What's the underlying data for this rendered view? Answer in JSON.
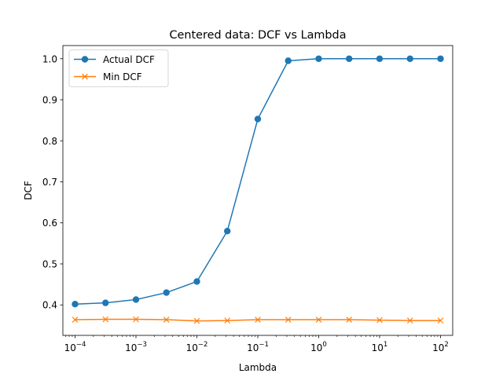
{
  "chart_data": {
    "type": "line",
    "title": "Centered data: DCF vs Lambda",
    "xlabel": "Lambda",
    "ylabel": "DCF",
    "xscale": "log",
    "xlim": [
      6.31e-05,
      158.5
    ],
    "ylim": [
      0.3258,
      1.0321
    ],
    "x": [
      0.0001,
      0.000316,
      0.001,
      0.00316,
      0.01,
      0.0316,
      0.1,
      0.316,
      1,
      3.16,
      10,
      31.6,
      100
    ],
    "x_ticks": [
      {
        "value": 0.0001,
        "base": "10",
        "exp": "−4"
      },
      {
        "value": 0.001,
        "base": "10",
        "exp": "−3"
      },
      {
        "value": 0.01,
        "base": "10",
        "exp": "−2"
      },
      {
        "value": 0.1,
        "base": "10",
        "exp": "−1"
      },
      {
        "value": 1,
        "base": "10",
        "exp": "0"
      },
      {
        "value": 10,
        "base": "10",
        "exp": "1"
      },
      {
        "value": 100,
        "base": "10",
        "exp": "2"
      }
    ],
    "y_ticks": [
      "0.4",
      "0.5",
      "0.6",
      "0.7",
      "0.8",
      "0.9",
      "1.0"
    ],
    "grid": false,
    "legend_position": "top-left",
    "series": [
      {
        "name": "Actual DCF",
        "color": "#1f77b4",
        "marker": "circle",
        "values": [
          0.402,
          0.405,
          0.413,
          0.43,
          0.457,
          0.58,
          0.853,
          0.995,
          1.0,
          1.0,
          1.0,
          1.0,
          1.0
        ]
      },
      {
        "name": "Min DCF",
        "color": "#ff7f0e",
        "marker": "x",
        "values": [
          0.364,
          0.365,
          0.365,
          0.364,
          0.361,
          0.362,
          0.364,
          0.364,
          0.364,
          0.364,
          0.363,
          0.362,
          0.362
        ]
      }
    ]
  }
}
